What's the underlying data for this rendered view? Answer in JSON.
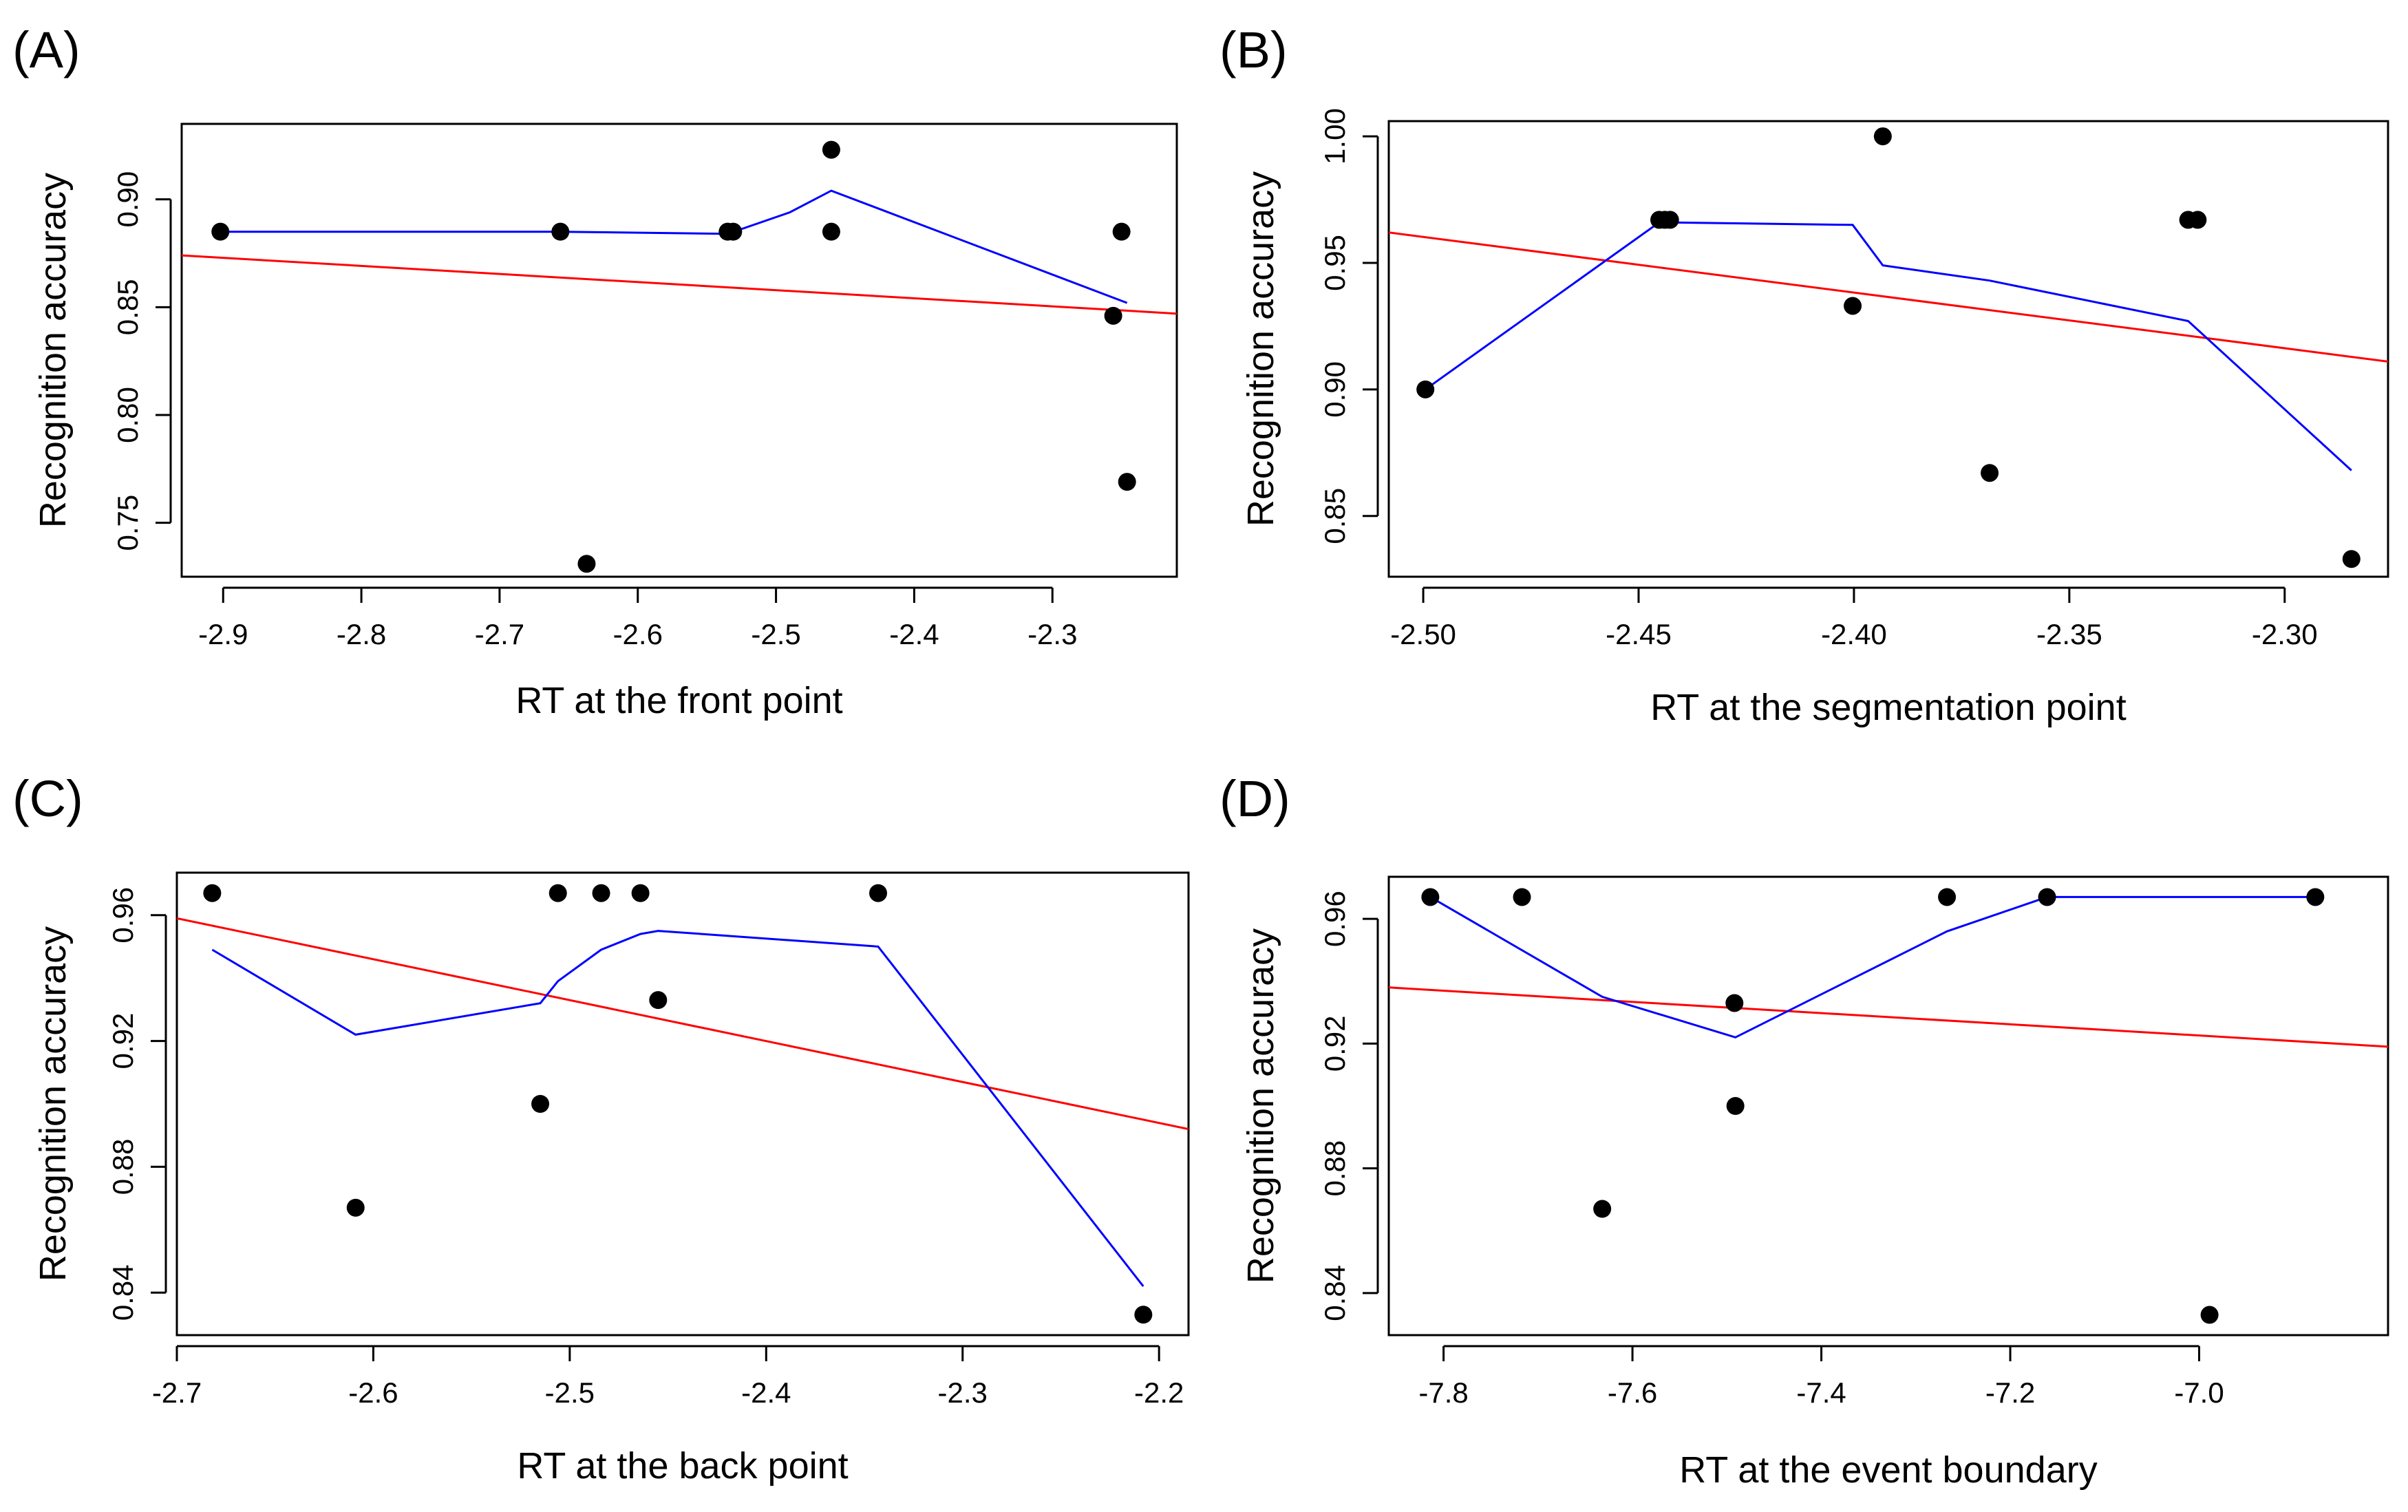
{
  "chart_data": [
    {
      "type": "scatter",
      "panel_label": "(A)",
      "xlabel": "RT at the front point",
      "ylabel": "Recognition accuracy",
      "xlim": [
        -2.93,
        -2.21
      ],
      "ylim": [
        0.725,
        0.935
      ],
      "xticks": [
        -2.9,
        -2.8,
        -2.7,
        -2.6,
        -2.5,
        -2.4,
        -2.3
      ],
      "xtick_labels": [
        "-2.9",
        "-2.8",
        "-2.7",
        "-2.6",
        "-2.5",
        "-2.4",
        "-2.3"
      ],
      "yticks": [
        0.75,
        0.8,
        0.85,
        0.9
      ],
      "ytick_labels": [
        "0.75",
        "0.80",
        "0.85",
        "0.90"
      ],
      "points": {
        "x": [
          -2.902,
          -2.656,
          -2.637,
          -2.535,
          -2.531,
          -2.46,
          -2.46,
          -2.256,
          -2.25,
          -2.246
        ],
        "y": [
          0.885,
          0.885,
          0.731,
          0.885,
          0.885,
          0.923,
          0.885,
          0.846,
          0.885,
          0.769
        ]
      },
      "series": [
        {
          "style": "red-line",
          "x": [
            -2.93,
            -2.21
          ],
          "y": [
            0.874,
            0.847
          ]
        },
        {
          "style": "blue-line",
          "x": [
            -2.902,
            -2.656,
            -2.535,
            -2.49,
            -2.46,
            -2.246
          ],
          "y": [
            0.885,
            0.885,
            0.884,
            0.894,
            0.904,
            0.852
          ]
        }
      ]
    },
    {
      "type": "scatter",
      "panel_label": "(B)",
      "xlabel": "RT at the segmentation point",
      "ylabel": "Recognition accuracy",
      "xlim": [
        -2.508,
        -2.276
      ],
      "ylim": [
        0.826,
        1.006
      ],
      "xticks": [
        -2.5,
        -2.45,
        -2.4,
        -2.35,
        -2.3
      ],
      "xtick_labels": [
        "-2.50",
        "-2.45",
        "-2.40",
        "-2.35",
        "-2.30"
      ],
      "yticks": [
        0.85,
        0.9,
        0.95,
        1.0
      ],
      "ytick_labels": [
        "0.85",
        "0.90",
        "0.95",
        "1.00"
      ],
      "points": {
        "x": [
          -2.4995,
          -2.4452,
          -2.4439,
          -2.4427,
          -2.4003,
          -2.3933,
          -2.3685,
          -2.3224,
          -2.3202,
          -2.2845
        ],
        "y": [
          0.9,
          0.967,
          0.967,
          0.967,
          0.933,
          1.0,
          0.867,
          0.967,
          0.967,
          0.833
        ]
      },
      "series": [
        {
          "style": "red-line",
          "x": [
            -2.508,
            -2.276
          ],
          "y": [
            0.962,
            0.911
          ]
        },
        {
          "style": "blue-line",
          "x": [
            -2.4995,
            -2.4452,
            -2.4439,
            -2.4003,
            -2.3933,
            -2.3685,
            -2.3224,
            -2.2845
          ],
          "y": [
            0.9,
            0.966,
            0.966,
            0.965,
            0.949,
            0.943,
            0.927,
            0.868
          ]
        }
      ]
    },
    {
      "type": "scatter",
      "panel_label": "(C)",
      "xlabel": "RT at the back point",
      "ylabel": "Recognition accuracy",
      "xlim": [
        -2.7,
        -2.185
      ],
      "ylim": [
        0.8265,
        0.9735
      ],
      "xticks": [
        -2.7,
        -2.6,
        -2.5,
        -2.4,
        -2.3,
        -2.2
      ],
      "xtick_labels": [
        "-2.7",
        "-2.6",
        "-2.5",
        "-2.4",
        "-2.3",
        "-2.2"
      ],
      "yticks": [
        0.84,
        0.88,
        0.92,
        0.96
      ],
      "ytick_labels": [
        "0.84",
        "0.88",
        "0.92",
        "0.96"
      ],
      "points": {
        "x": [
          -2.682,
          -2.609,
          -2.515,
          -2.506,
          -2.484,
          -2.464,
          -2.455,
          -2.343,
          -2.208
        ],
        "y": [
          0.967,
          0.867,
          0.9,
          0.967,
          0.967,
          0.967,
          0.933,
          0.967,
          0.833
        ]
      },
      "series": [
        {
          "style": "red-line",
          "x": [
            -2.7,
            -2.185
          ],
          "y": [
            0.959,
            0.892
          ]
        },
        {
          "style": "blue-line",
          "x": [
            -2.682,
            -2.609,
            -2.515,
            -2.506,
            -2.484,
            -2.464,
            -2.455,
            -2.343,
            -2.208
          ],
          "y": [
            0.949,
            0.922,
            0.932,
            0.939,
            0.949,
            0.954,
            0.955,
            0.95,
            0.842
          ]
        }
      ]
    },
    {
      "type": "scatter",
      "panel_label": "(D)",
      "xlabel": "RT at the event boundary",
      "ylabel": "Recognition accuracy",
      "xlim": [
        -7.858,
        -6.8
      ],
      "ylim": [
        0.8265,
        0.9735
      ],
      "xticks": [
        -7.8,
        -7.6,
        -7.4,
        -7.2,
        -7.0
      ],
      "xtick_labels": [
        "-7.8",
        "-7.6",
        "-7.4",
        "-7.2",
        "-7.0"
      ],
      "yticks": [
        0.84,
        0.88,
        0.92,
        0.96
      ],
      "ytick_labels": [
        "0.84",
        "0.88",
        "0.92",
        "0.96"
      ],
      "points": {
        "x": [
          -7.814,
          -7.717,
          -7.632,
          -7.492,
          -7.491,
          -7.267,
          -7.161,
          -6.989,
          -6.877
        ],
        "y": [
          0.967,
          0.967,
          0.867,
          0.933,
          0.9,
          0.967,
          0.967,
          0.833,
          0.967
        ]
      },
      "series": [
        {
          "style": "red-line",
          "x": [
            -7.858,
            -6.8
          ],
          "y": [
            0.938,
            0.919
          ]
        },
        {
          "style": "blue-line",
          "x": [
            -7.814,
            -7.632,
            -7.491,
            -7.267,
            -7.161,
            -6.877
          ],
          "y": [
            0.967,
            0.935,
            0.922,
            0.956,
            0.967,
            0.967
          ]
        }
      ]
    }
  ]
}
